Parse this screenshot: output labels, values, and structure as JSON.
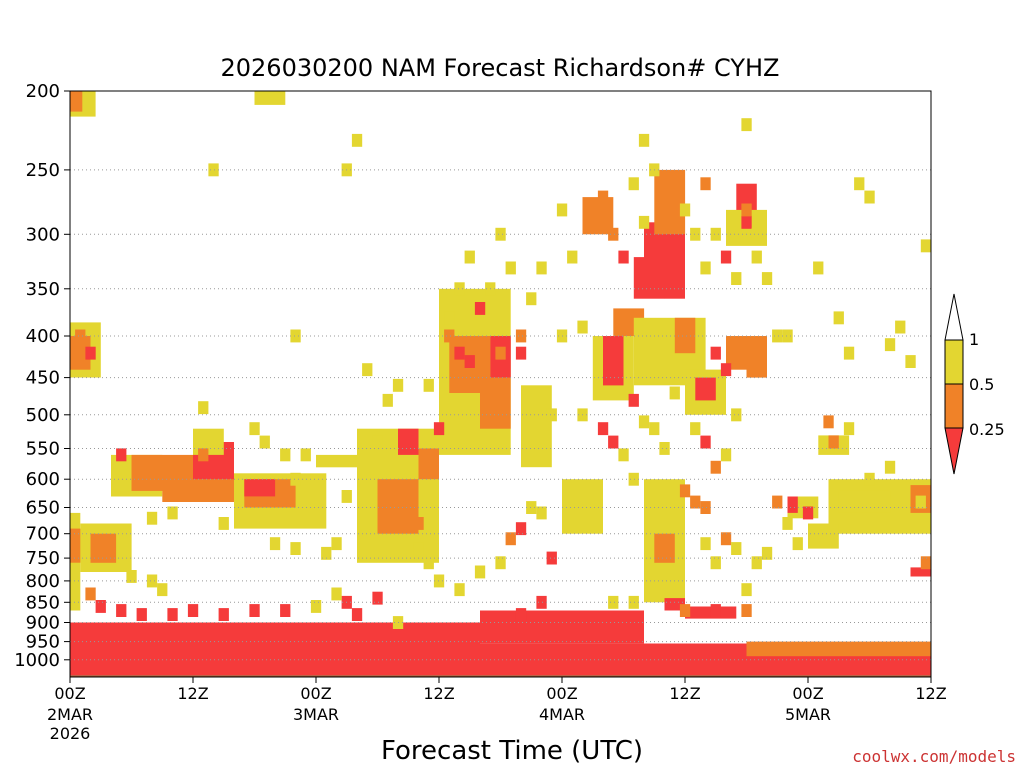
{
  "chart_data": {
    "type": "heatmap",
    "title": "2026030200 NAM Forecast Richardson# CYHZ",
    "xlabel": "Forecast Time (UTC)",
    "ylabel": "",
    "x_range_hours": [
      0,
      84
    ],
    "y_axis_scale": "log-pressure",
    "y_range_hPa": [
      1050,
      200
    ],
    "y_ticks": [
      200,
      250,
      300,
      350,
      400,
      450,
      500,
      550,
      600,
      650,
      700,
      750,
      800,
      850,
      900,
      950,
      1000
    ],
    "x_ticks": [
      {
        "hour": 0,
        "label": "00Z",
        "date": "2MAR",
        "year": "2026"
      },
      {
        "hour": 12,
        "label": "12Z",
        "date": "",
        "year": ""
      },
      {
        "hour": 24,
        "label": "00Z",
        "date": "3MAR",
        "year": ""
      },
      {
        "hour": 36,
        "label": "12Z",
        "date": "",
        "year": ""
      },
      {
        "hour": 48,
        "label": "00Z",
        "date": "4MAR",
        "year": ""
      },
      {
        "hour": 60,
        "label": "12Z",
        "date": "",
        "year": ""
      },
      {
        "hour": 72,
        "label": "00Z",
        "date": "5MAR",
        "year": ""
      },
      {
        "hour": 84,
        "label": "12Z",
        "date": "",
        "year": ""
      }
    ],
    "gridlines": "dotted, at pressure ticks",
    "color_scale": [
      {
        "range": "< 0.25",
        "color": "#f53b3b"
      },
      {
        "range": "0.25 - 0.5",
        "color": "#f08228"
      },
      {
        "range": "0.5 - 1",
        "color": "#e3d631"
      },
      {
        "range": "> 1",
        "color": "#ffffff"
      }
    ],
    "legend_labels": [
      "1",
      "0.5",
      "0.25"
    ],
    "ground_color": "#a0522d",
    "regions": [
      {
        "t0": 0,
        "t1": 84,
        "p0": 1045,
        "p1": 955,
        "cat": "red"
      },
      {
        "t0": 0,
        "t1": 40,
        "p0": 955,
        "p1": 900,
        "cat": "red"
      },
      {
        "t0": 40,
        "t1": 56,
        "p0": 955,
        "p1": 870,
        "cat": "red"
      },
      {
        "t0": 66,
        "t1": 84,
        "p0": 990,
        "p1": 950,
        "cat": "orange"
      },
      {
        "t0": 0,
        "t1": 1,
        "p0": 870,
        "p1": 660,
        "cat": "yellow"
      },
      {
        "t0": 0,
        "t1": 1.5,
        "p0": 760,
        "p1": 690,
        "cat": "orange"
      },
      {
        "t0": 1,
        "t1": 6,
        "p0": 780,
        "p1": 680,
        "cat": "yellow"
      },
      {
        "t0": 2,
        "t1": 4.5,
        "p0": 760,
        "p1": 700,
        "cat": "orange"
      },
      {
        "t0": 0,
        "t1": 3,
        "p0": 450,
        "p1": 385,
        "cat": "yellow"
      },
      {
        "t0": 0,
        "t1": 2,
        "p0": 440,
        "p1": 400,
        "cat": "orange"
      },
      {
        "t0": 0,
        "t1": 2.5,
        "p0": 215,
        "p1": 200,
        "cat": "yellow"
      },
      {
        "t0": 0,
        "t1": 1.2,
        "p0": 212,
        "p1": 200,
        "cat": "orange"
      },
      {
        "t0": 18,
        "t1": 21,
        "p0": 208,
        "p1": 200,
        "cat": "yellow"
      },
      {
        "t0": 4,
        "t1": 9,
        "p0": 630,
        "p1": 560,
        "cat": "yellow"
      },
      {
        "t0": 6,
        "t1": 16,
        "p0": 620,
        "p1": 560,
        "cat": "orange"
      },
      {
        "t0": 9,
        "t1": 16,
        "p0": 640,
        "p1": 600,
        "cat": "orange"
      },
      {
        "t0": 12,
        "t1": 16,
        "p0": 600,
        "p1": 540,
        "cat": "red"
      },
      {
        "t0": 16,
        "t1": 25,
        "p0": 690,
        "p1": 590,
        "cat": "yellow"
      },
      {
        "t0": 17,
        "t1": 22,
        "p0": 650,
        "p1": 600,
        "cat": "orange"
      },
      {
        "t0": 17,
        "t1": 20,
        "p0": 630,
        "p1": 600,
        "cat": "red"
      },
      {
        "t0": 12,
        "t1": 15,
        "p0": 560,
        "p1": 520,
        "cat": "yellow"
      },
      {
        "t0": 24,
        "t1": 30,
        "p0": 580,
        "p1": 560,
        "cat": "yellow"
      },
      {
        "t0": 28,
        "t1": 36,
        "p0": 760,
        "p1": 520,
        "cat": "yellow"
      },
      {
        "t0": 30,
        "t1": 34,
        "p0": 700,
        "p1": 600,
        "cat": "orange"
      },
      {
        "t0": 32,
        "t1": 34,
        "p0": 560,
        "p1": 520,
        "cat": "red"
      },
      {
        "t0": 34,
        "t1": 36,
        "p0": 600,
        "p1": 550,
        "cat": "orange"
      },
      {
        "t0": 36,
        "t1": 43,
        "p0": 560,
        "p1": 350,
        "cat": "yellow"
      },
      {
        "t0": 37,
        "t1": 41,
        "p0": 470,
        "p1": 400,
        "cat": "orange"
      },
      {
        "t0": 40,
        "t1": 43,
        "p0": 520,
        "p1": 450,
        "cat": "orange"
      },
      {
        "t0": 41,
        "t1": 43,
        "p0": 450,
        "p1": 400,
        "cat": "red"
      },
      {
        "t0": 44,
        "t1": 47,
        "p0": 580,
        "p1": 460,
        "cat": "yellow"
      },
      {
        "t0": 48,
        "t1": 52,
        "p0": 700,
        "p1": 600,
        "cat": "yellow"
      },
      {
        "t0": 51,
        "t1": 55,
        "p0": 480,
        "p1": 400,
        "cat": "yellow"
      },
      {
        "t0": 52,
        "t1": 54,
        "p0": 460,
        "p1": 400,
        "cat": "red"
      },
      {
        "t0": 50,
        "t1": 53,
        "p0": 300,
        "p1": 270,
        "cat": "orange"
      },
      {
        "t0": 53,
        "t1": 56,
        "p0": 400,
        "p1": 370,
        "cat": "orange"
      },
      {
        "t0": 55,
        "t1": 58,
        "p0": 360,
        "p1": 320,
        "cat": "red"
      },
      {
        "t0": 56,
        "t1": 60,
        "p0": 330,
        "p1": 290,
        "cat": "red"
      },
      {
        "t0": 57,
        "t1": 60,
        "p0": 300,
        "p1": 250,
        "cat": "orange"
      },
      {
        "t0": 58,
        "t1": 60,
        "p0": 360,
        "p1": 300,
        "cat": "red"
      },
      {
        "t0": 55,
        "t1": 62,
        "p0": 460,
        "p1": 380,
        "cat": "yellow"
      },
      {
        "t0": 59,
        "t1": 61,
        "p0": 420,
        "p1": 380,
        "cat": "orange"
      },
      {
        "t0": 60,
        "t1": 64,
        "p0": 500,
        "p1": 440,
        "cat": "yellow"
      },
      {
        "t0": 61,
        "t1": 63,
        "p0": 480,
        "p1": 450,
        "cat": "red"
      },
      {
        "t0": 56,
        "t1": 60,
        "p0": 850,
        "p1": 600,
        "cat": "yellow"
      },
      {
        "t0": 57,
        "t1": 59,
        "p0": 760,
        "p1": 700,
        "cat": "orange"
      },
      {
        "t0": 58,
        "t1": 60,
        "p0": 870,
        "p1": 840,
        "cat": "red"
      },
      {
        "t0": 60,
        "t1": 65,
        "p0": 890,
        "p1": 860,
        "cat": "red"
      },
      {
        "t0": 64,
        "t1": 67,
        "p0": 440,
        "p1": 400,
        "cat": "orange"
      },
      {
        "t0": 65,
        "t1": 67,
        "p0": 290,
        "p1": 260,
        "cat": "red"
      },
      {
        "t0": 64,
        "t1": 68,
        "p0": 310,
        "p1": 280,
        "cat": "yellow"
      },
      {
        "t0": 74,
        "t1": 84,
        "p0": 700,
        "p1": 600,
        "cat": "yellow"
      },
      {
        "t0": 75,
        "t1": 80,
        "p0": 660,
        "p1": 620,
        "cat": "yellow"
      },
      {
        "t0": 82,
        "t1": 84,
        "p0": 660,
        "p1": 610,
        "cat": "orange"
      },
      {
        "t0": 73,
        "t1": 76,
        "p0": 560,
        "p1": 530,
        "cat": "yellow"
      },
      {
        "t0": 74,
        "t1": 75,
        "p0": 550,
        "p1": 530,
        "cat": "orange"
      },
      {
        "t0": 82,
        "t1": 84,
        "p0": 790,
        "p1": 770,
        "cat": "red"
      },
      {
        "t0": 70,
        "t1": 73,
        "p0": 670,
        "p1": 630,
        "cat": "yellow"
      },
      {
        "t0": 70,
        "t1": 71,
        "p0": 660,
        "p1": 630,
        "cat": "red"
      },
      {
        "t0": 72,
        "t1": 75,
        "p0": 730,
        "p1": 680,
        "cat": "yellow"
      },
      {
        "t0": 66,
        "t1": 68,
        "p0": 450,
        "p1": 400,
        "cat": "orange"
      }
    ],
    "cells": [
      [
        1,
        400,
        "orange"
      ],
      [
        2,
        420,
        "red"
      ],
      [
        5,
        560,
        "red"
      ],
      [
        13,
        490,
        "yellow"
      ],
      [
        13,
        560,
        "orange"
      ],
      [
        14,
        250,
        "yellow"
      ],
      [
        22,
        400,
        "yellow"
      ],
      [
        22,
        600,
        "yellow"
      ],
      [
        27,
        630,
        "yellow"
      ],
      [
        28,
        230,
        "yellow"
      ],
      [
        27,
        250,
        "yellow"
      ],
      [
        29,
        440,
        "yellow"
      ],
      [
        33,
        650,
        "orange"
      ],
      [
        34,
        680,
        "orange"
      ],
      [
        35,
        460,
        "yellow"
      ],
      [
        36,
        520,
        "red"
      ],
      [
        37,
        380,
        "yellow"
      ],
      [
        38,
        350,
        "yellow"
      ],
      [
        39,
        320,
        "yellow"
      ],
      [
        40,
        370,
        "red"
      ],
      [
        41,
        350,
        "yellow"
      ],
      [
        42,
        300,
        "yellow"
      ],
      [
        43,
        330,
        "yellow"
      ],
      [
        45,
        360,
        "yellow"
      ],
      [
        46,
        330,
        "yellow"
      ],
      [
        47,
        500,
        "yellow"
      ],
      [
        48,
        280,
        "yellow"
      ],
      [
        49,
        320,
        "yellow"
      ],
      [
        50,
        500,
        "yellow"
      ],
      [
        52,
        520,
        "red"
      ],
      [
        53,
        540,
        "red"
      ],
      [
        54,
        560,
        "yellow"
      ],
      [
        55,
        600,
        "yellow"
      ],
      [
        56,
        230,
        "yellow"
      ],
      [
        57,
        250,
        "yellow"
      ],
      [
        59,
        260,
        "orange"
      ],
      [
        60,
        280,
        "yellow"
      ],
      [
        61,
        300,
        "yellow"
      ],
      [
        62,
        330,
        "yellow"
      ],
      [
        63,
        420,
        "red"
      ],
      [
        64,
        440,
        "red"
      ],
      [
        65,
        500,
        "yellow"
      ],
      [
        66,
        220,
        "yellow"
      ],
      [
        66,
        290,
        "red"
      ],
      [
        68,
        340,
        "yellow"
      ],
      [
        69,
        400,
        "yellow"
      ],
      [
        70,
        400,
        "yellow"
      ],
      [
        73,
        330,
        "yellow"
      ],
      [
        75,
        380,
        "yellow"
      ],
      [
        76,
        420,
        "yellow"
      ],
      [
        77,
        260,
        "yellow"
      ],
      [
        78,
        270,
        "yellow"
      ],
      [
        80,
        410,
        "yellow"
      ],
      [
        81,
        390,
        "yellow"
      ],
      [
        82,
        430,
        "yellow"
      ],
      [
        84,
        310,
        "yellow"
      ],
      [
        84,
        760,
        "orange"
      ],
      [
        64,
        710,
        "orange"
      ],
      [
        62,
        720,
        "yellow"
      ],
      [
        63,
        760,
        "yellow"
      ],
      [
        65,
        730,
        "yellow"
      ],
      [
        69,
        640,
        "orange"
      ],
      [
        70,
        680,
        "yellow"
      ],
      [
        72,
        660,
        "red"
      ],
      [
        60,
        620,
        "orange"
      ],
      [
        61,
        640,
        "orange"
      ],
      [
        62,
        650,
        "orange"
      ],
      [
        45,
        650,
        "yellow"
      ],
      [
        46,
        660,
        "yellow"
      ],
      [
        44,
        690,
        "red"
      ],
      [
        43,
        710,
        "orange"
      ],
      [
        47,
        750,
        "red"
      ],
      [
        42,
        760,
        "yellow"
      ],
      [
        40,
        780,
        "yellow"
      ],
      [
        38,
        820,
        "yellow"
      ],
      [
        36,
        800,
        "yellow"
      ],
      [
        35,
        760,
        "yellow"
      ],
      [
        34,
        730,
        "yellow"
      ],
      [
        30,
        840,
        "red"
      ],
      [
        27,
        850,
        "red"
      ],
      [
        26,
        830,
        "yellow"
      ],
      [
        24,
        860,
        "yellow"
      ],
      [
        25,
        740,
        "yellow"
      ],
      [
        26,
        720,
        "yellow"
      ],
      [
        22,
        730,
        "yellow"
      ],
      [
        20,
        720,
        "yellow"
      ],
      [
        15,
        680,
        "yellow"
      ],
      [
        10,
        660,
        "yellow"
      ],
      [
        8,
        670,
        "yellow"
      ],
      [
        6,
        790,
        "yellow"
      ],
      [
        8,
        800,
        "yellow"
      ],
      [
        9,
        820,
        "yellow"
      ],
      [
        3,
        860,
        "red"
      ],
      [
        2,
        830,
        "orange"
      ],
      [
        5,
        870,
        "red"
      ],
      [
        7,
        880,
        "red"
      ],
      [
        10,
        880,
        "red"
      ],
      [
        12,
        870,
        "red"
      ],
      [
        15,
        880,
        "red"
      ],
      [
        18,
        870,
        "red"
      ],
      [
        21,
        870,
        "red"
      ],
      [
        28,
        880,
        "red"
      ],
      [
        32,
        900,
        "yellow"
      ],
      [
        44,
        880,
        "red"
      ],
      [
        46,
        850,
        "red"
      ],
      [
        53,
        850,
        "yellow"
      ],
      [
        55,
        850,
        "yellow"
      ],
      [
        60,
        870,
        "orange"
      ],
      [
        63,
        870,
        "red"
      ],
      [
        66,
        870,
        "orange"
      ],
      [
        67,
        760,
        "yellow"
      ],
      [
        68,
        740,
        "yellow"
      ],
      [
        66,
        820,
        "yellow"
      ],
      [
        71,
        720,
        "yellow"
      ],
      [
        74,
        510,
        "orange"
      ],
      [
        76,
        520,
        "yellow"
      ],
      [
        80,
        580,
        "yellow"
      ],
      [
        78,
        600,
        "yellow"
      ],
      [
        83,
        640,
        "yellow"
      ],
      [
        18,
        520,
        "yellow"
      ],
      [
        19,
        540,
        "yellow"
      ],
      [
        21,
        560,
        "yellow"
      ],
      [
        23,
        560,
        "yellow"
      ],
      [
        30,
        540,
        "yellow"
      ],
      [
        31,
        480,
        "yellow"
      ],
      [
        32,
        460,
        "yellow"
      ],
      [
        37,
        400,
        "orange"
      ],
      [
        38,
        420,
        "red"
      ],
      [
        39,
        430,
        "red"
      ],
      [
        44,
        420,
        "red"
      ],
      [
        44,
        400,
        "orange"
      ],
      [
        42,
        420,
        "orange"
      ],
      [
        48,
        400,
        "yellow"
      ],
      [
        50,
        390,
        "yellow"
      ],
      [
        55,
        480,
        "red"
      ],
      [
        56,
        510,
        "yellow"
      ],
      [
        57,
        520,
        "yellow"
      ],
      [
        59,
        470,
        "yellow"
      ],
      [
        61,
        520,
        "yellow"
      ],
      [
        62,
        540,
        "red"
      ],
      [
        63,
        580,
        "orange"
      ],
      [
        64,
        560,
        "yellow"
      ],
      [
        58,
        550,
        "yellow"
      ],
      [
        52,
        270,
        "orange"
      ],
      [
        53,
        300,
        "orange"
      ],
      [
        54,
        320,
        "red"
      ],
      [
        55,
        260,
        "yellow"
      ],
      [
        56,
        290,
        "yellow"
      ],
      [
        62,
        260,
        "orange"
      ],
      [
        63,
        300,
        "yellow"
      ],
      [
        64,
        320,
        "red"
      ],
      [
        65,
        340,
        "yellow"
      ],
      [
        66,
        280,
        "orange"
      ],
      [
        67,
        300,
        "yellow"
      ],
      [
        67,
        320,
        "yellow"
      ]
    ]
  },
  "legend": {
    "labels": [
      "1",
      "0.5",
      "0.25"
    ]
  },
  "credit": "coolwx.com/models"
}
